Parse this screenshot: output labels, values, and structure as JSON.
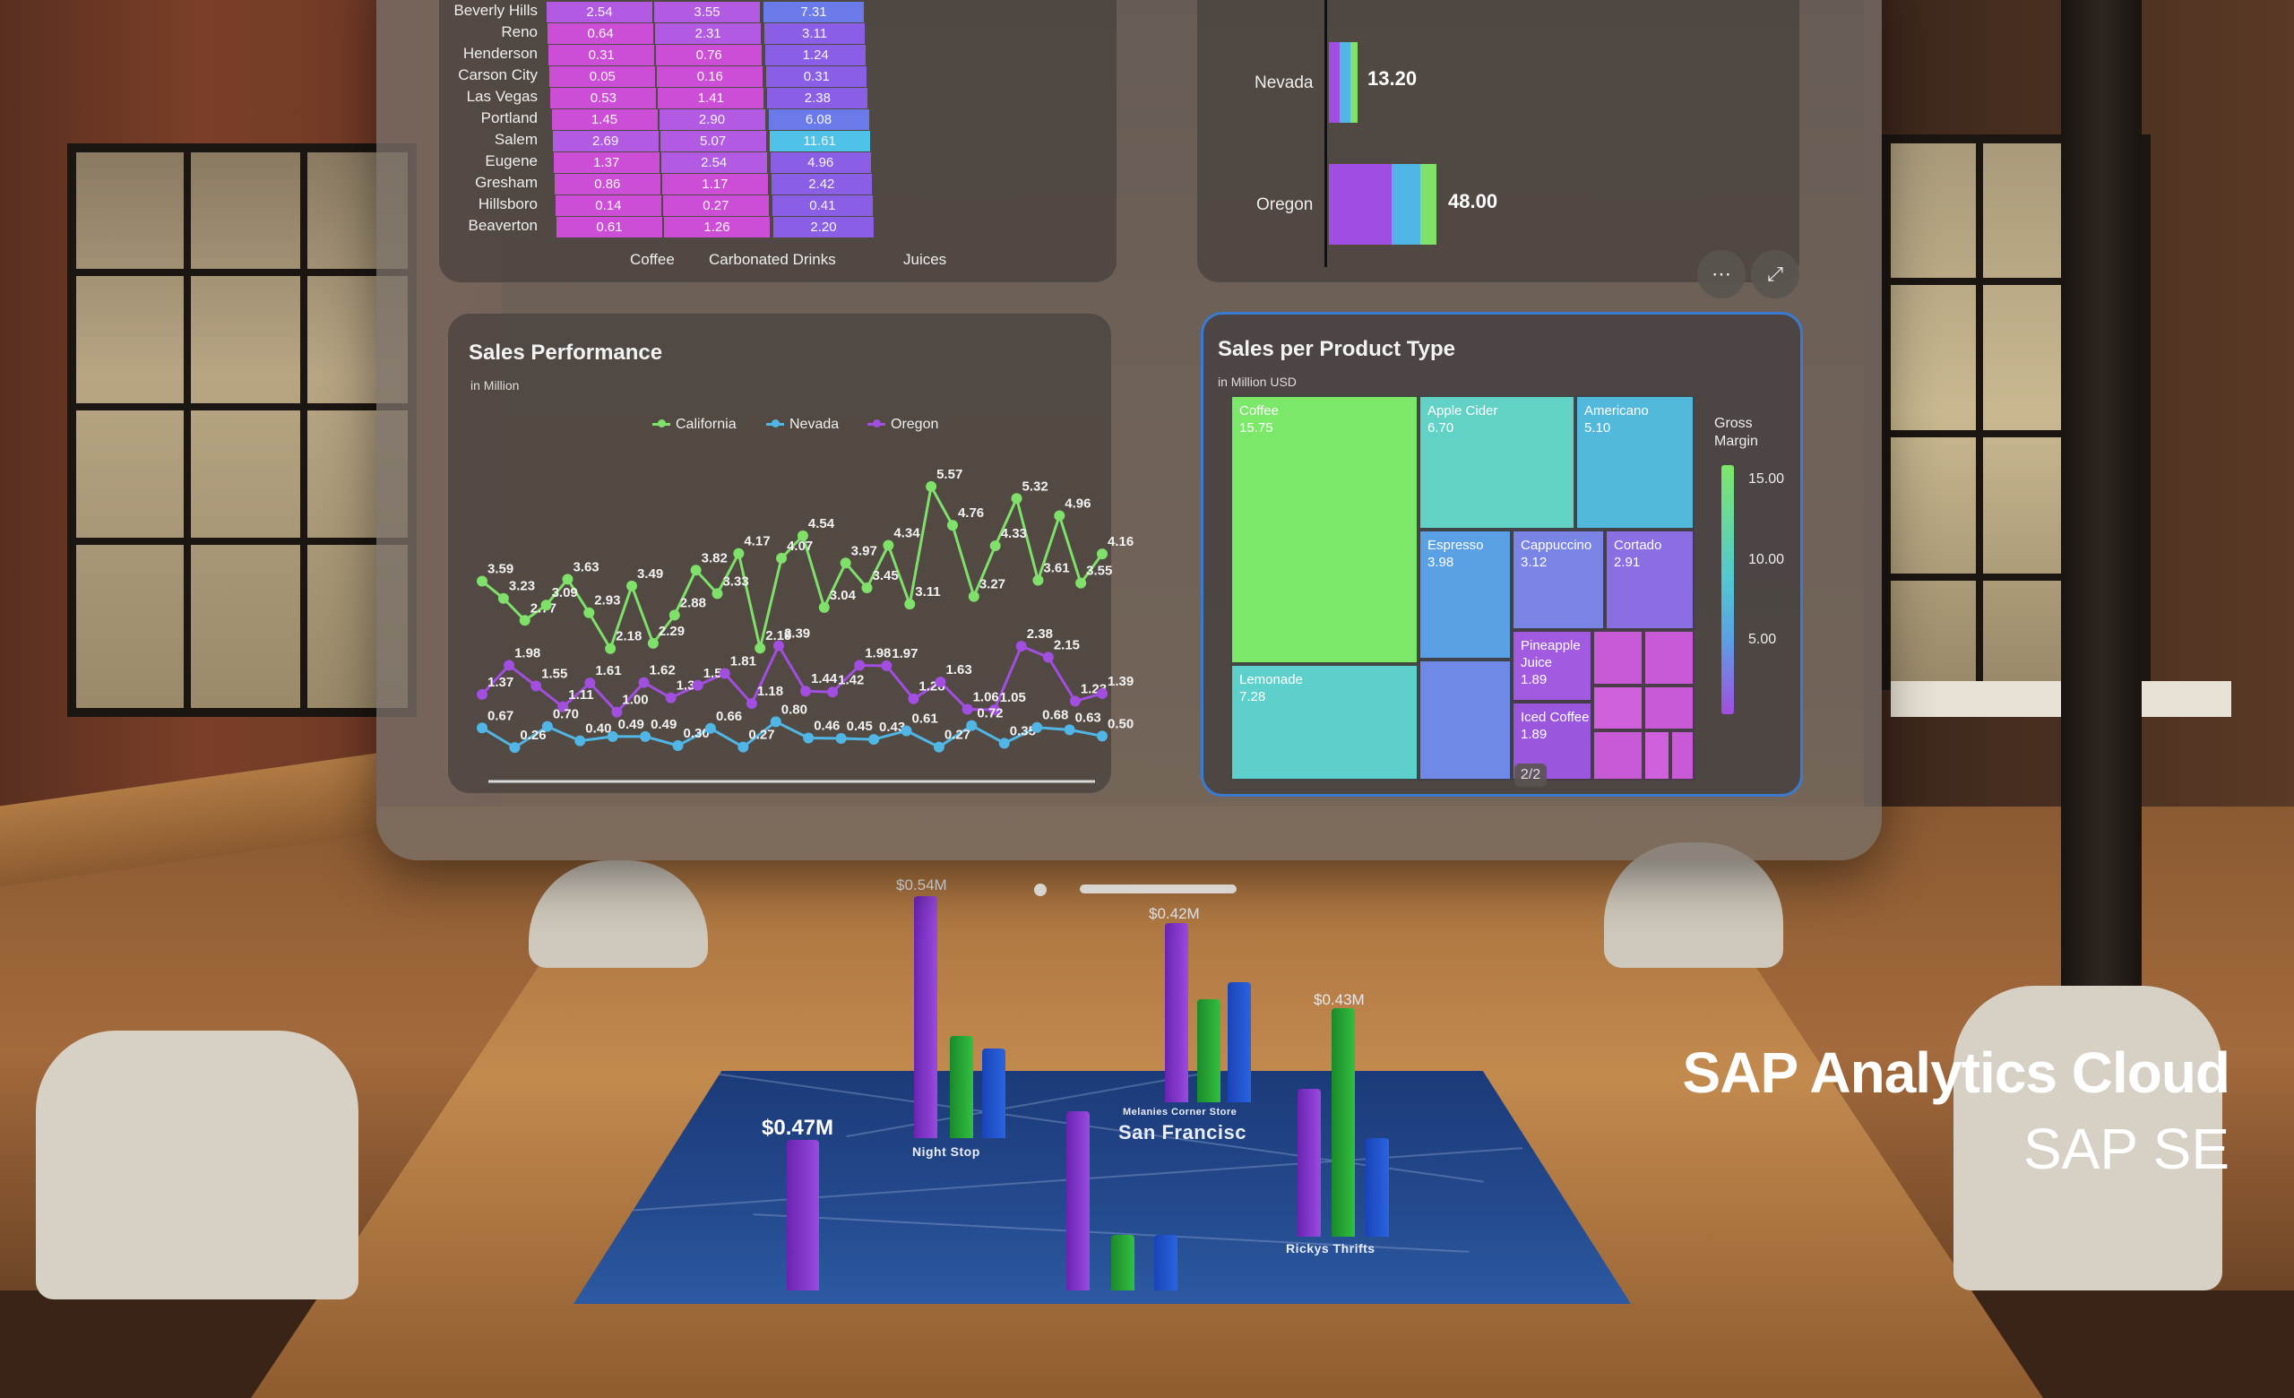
{
  "heatmap": {
    "columns": [
      "Coffee",
      "Carbonated Drinks",
      "Juices"
    ],
    "rows": [
      {
        "city": "Beverly Hills",
        "values": [
          "2.54",
          "3.55",
          "7.31"
        ]
      },
      {
        "city": "Reno",
        "values": [
          "0.64",
          "2.31",
          "3.11"
        ]
      },
      {
        "city": "Henderson",
        "values": [
          "0.31",
          "0.76",
          "1.24"
        ]
      },
      {
        "city": "Carson City",
        "values": [
          "0.05",
          "0.16",
          "0.31"
        ]
      },
      {
        "city": "Las Vegas",
        "values": [
          "0.53",
          "1.41",
          "2.38"
        ]
      },
      {
        "city": "Portland",
        "values": [
          "1.45",
          "2.90",
          "6.08"
        ]
      },
      {
        "city": "Salem",
        "values": [
          "2.69",
          "5.07",
          "11.61"
        ]
      },
      {
        "city": "Eugene",
        "values": [
          "1.37",
          "2.54",
          "4.96"
        ]
      },
      {
        "city": "Gresham",
        "values": [
          "0.86",
          "1.17",
          "2.42"
        ]
      },
      {
        "city": "Hillsboro",
        "values": [
          "0.14",
          "0.27",
          "0.41"
        ]
      },
      {
        "city": "Beaverton",
        "values": [
          "0.61",
          "1.26",
          "2.20"
        ]
      }
    ]
  },
  "state_bars": {
    "rows": [
      {
        "state": "Nevada",
        "value": "13.20"
      },
      {
        "state": "Oregon",
        "value": "48.00"
      }
    ],
    "more_icon": "more-icon",
    "expand_icon": "expand-icon"
  },
  "sales_performance": {
    "title": "Sales Performance",
    "subtitle": "in Million",
    "legend": [
      "California",
      "Nevada",
      "Oregon"
    ],
    "colors": {
      "California": "#7fe06a",
      "Nevada": "#4fb6e6",
      "Oregon": "#a24ee0"
    }
  },
  "chart_data": {
    "type": "line",
    "title": "Sales Performance",
    "ylabel": "in Million",
    "series": [
      {
        "name": "California",
        "values": [
          3.59,
          3.23,
          2.77,
          3.09,
          3.63,
          2.93,
          2.18,
          3.49,
          2.29,
          2.88,
          3.82,
          3.33,
          4.17,
          2.19,
          4.07,
          4.54,
          3.04,
          3.97,
          3.45,
          4.34,
          3.11,
          5.57,
          4.76,
          3.27,
          4.33,
          5.32,
          3.61,
          4.96,
          3.55,
          4.16
        ]
      },
      {
        "name": "Oregon",
        "values": [
          1.37,
          1.98,
          1.55,
          1.11,
          1.61,
          1.0,
          1.62,
          1.3,
          1.56,
          1.81,
          1.18,
          2.39,
          1.44,
          1.42,
          1.98,
          1.97,
          1.28,
          1.63,
          1.06,
          1.05,
          2.38,
          2.15,
          1.23,
          1.39
        ]
      },
      {
        "name": "Nevada",
        "values": [
          0.67,
          0.26,
          0.7,
          0.4,
          0.49,
          0.49,
          0.3,
          0.66,
          0.27,
          0.8,
          0.46,
          0.45,
          0.43,
          0.61,
          0.27,
          0.72,
          0.35,
          0.68,
          0.63,
          0.5
        ]
      }
    ]
  },
  "treemap": {
    "title": "Sales per Product Type",
    "subtitle": "in Million USD",
    "legend_title": "Gross Margin",
    "legend_ticks": [
      "15.00",
      "10.00",
      "5.00"
    ],
    "cells": [
      {
        "name": "Coffee",
        "value": "15.75",
        "color": "#7ce86a"
      },
      {
        "name": "Apple Cider",
        "value": "6.70",
        "color": "#62d2c6"
      },
      {
        "name": "Americano",
        "value": "5.10",
        "color": "#52b8dc"
      },
      {
        "name": "Espresso",
        "value": "3.98",
        "color": "#5aa0e4"
      },
      {
        "name": "Cappuccino",
        "value": "3.12",
        "color": "#7a84e4"
      },
      {
        "name": "Cortado",
        "value": "2.91",
        "color": "#8a6ee2"
      },
      {
        "name": "Lemonade",
        "value": "7.28",
        "color": "#5ed0cc"
      },
      {
        "name": "Pineapple Juice",
        "value": "1.89",
        "color": "#a25ae0"
      },
      {
        "name": "Iced Coffee",
        "value": "1.89",
        "color": "#9a56dc"
      }
    ]
  },
  "pager": "2/2",
  "map": {
    "labels": [
      "Night Stop",
      "Melanies Corner Store",
      "San Francisc",
      "Rickys Thrifts"
    ],
    "values": [
      "$0.54M",
      "$0.42M",
      "$0.43M",
      "$0.47M"
    ]
  },
  "branding": {
    "product": "SAP Analytics Cloud",
    "company": "SAP SE"
  }
}
